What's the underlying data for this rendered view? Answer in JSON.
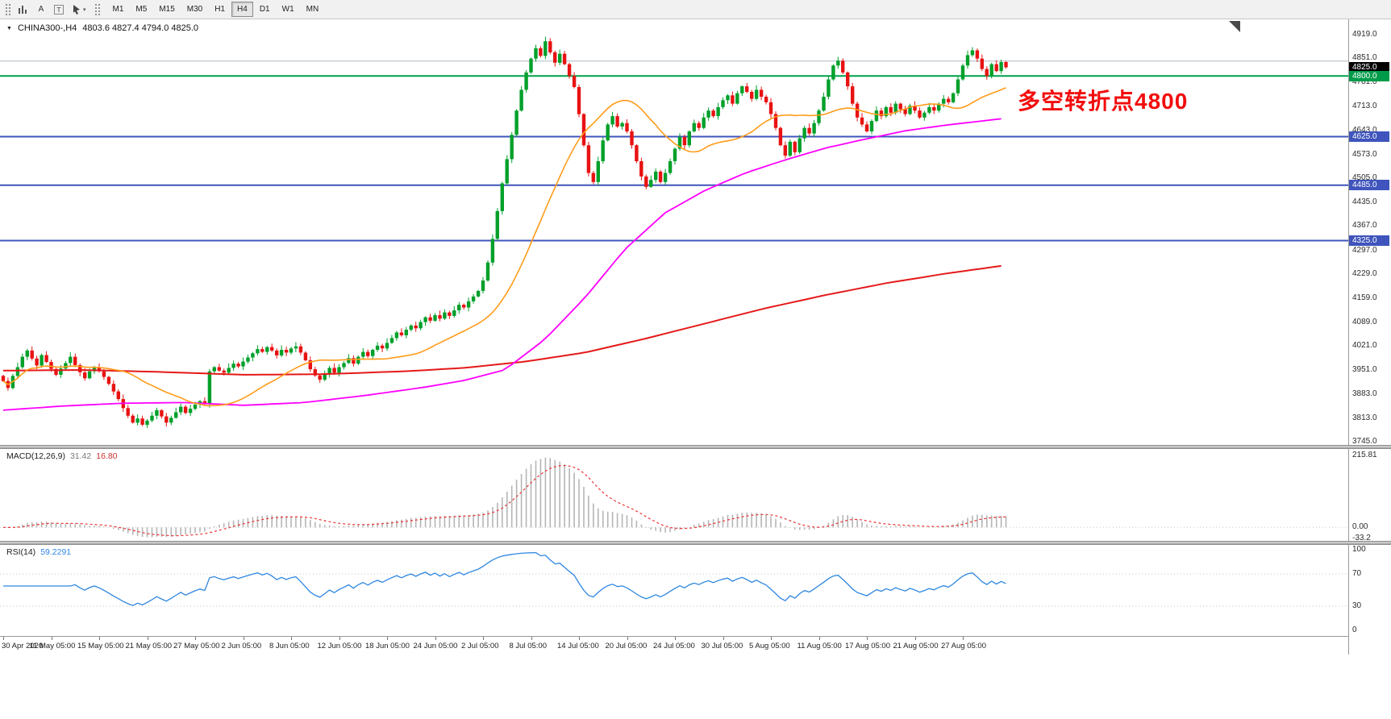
{
  "toolbar": {
    "tools": [
      {
        "id": "chart-type",
        "label": ""
      },
      {
        "id": "text-label",
        "label": "A"
      },
      {
        "id": "text-box",
        "label": "T"
      },
      {
        "id": "cursor",
        "label": ""
      }
    ],
    "timeframes": [
      {
        "label": "M1",
        "active": false
      },
      {
        "label": "M5",
        "active": false
      },
      {
        "label": "M15",
        "active": false
      },
      {
        "label": "M30",
        "active": false
      },
      {
        "label": "H1",
        "active": false
      },
      {
        "label": "H4",
        "active": true
      },
      {
        "label": "D1",
        "active": false
      },
      {
        "label": "W1",
        "active": false
      },
      {
        "label": "MN",
        "active": false
      }
    ]
  },
  "main_chart": {
    "title": "CHINA300-,H4",
    "ohlc": "4803.6 4827.4 4794.0 4825.0",
    "annotation": "多空转折点4800",
    "price_axis": {
      "top_value": 4919,
      "bottom_value": 3745,
      "labels": [
        "4919.0",
        "4851.0",
        "4781.0",
        "4713.0",
        "4643.0",
        "4573.0",
        "4505.0",
        "4435.0",
        "4367.0",
        "4297.0",
        "4229.0",
        "4159.0",
        "4089.0",
        "4021.0",
        "3951.0",
        "3883.0",
        "3813.0",
        "3745.0"
      ]
    },
    "tags": [
      {
        "value": "4825.0",
        "price": 4825,
        "bg": "#000000"
      },
      {
        "value": "4800.0",
        "price": 4800,
        "bg": "#009b4a"
      },
      {
        "value": "4625.0",
        "price": 4625,
        "bg": "#3f54bc"
      },
      {
        "value": "4485.0",
        "price": 4485,
        "bg": "#3f54bc"
      },
      {
        "value": "4325.0",
        "price": 4325,
        "bg": "#3f54bc"
      }
    ],
    "levels": [
      {
        "price": 4843,
        "color": "#b0b7c3",
        "width": 1
      },
      {
        "price": 4800,
        "color": "#00a24b",
        "width": 2
      },
      {
        "price": 4625,
        "color": "#3f54bc",
        "width": 2
      },
      {
        "price": 4485,
        "color": "#3f54bc",
        "width": 2
      },
      {
        "price": 4325,
        "color": "#3f54bc",
        "width": 2
      }
    ]
  },
  "macd_panel": {
    "label": "MACD(12,26,9)",
    "value_main": "31.42",
    "value_signal": "16.80",
    "axis": [
      "215.81",
      "0.00",
      "-33.2"
    ],
    "max": 215.81,
    "min": -33.2
  },
  "rsi_panel": {
    "label": "RSI(14)",
    "value": "59.2291",
    "axis": [
      "100",
      "70",
      "30",
      "0"
    ],
    "grid": [
      70,
      30
    ]
  },
  "time_axis": {
    "labels": [
      "30 Apr 2020",
      "11 May 05:00",
      "15 May 05:00",
      "21 May 05:00",
      "27 May 05:00",
      "2 Jun 05:00",
      "8 Jun 05:00",
      "12 Jun 05:00",
      "18 Jun 05:00",
      "24 Jun 05:00",
      "2 Jul 05:00",
      "8 Jul 05:00",
      "14 Jul 05:00",
      "20 Jul 05:00",
      "24 Jul 05:00",
      "30 Jul 05:00",
      "5 Aug 05:00",
      "11 Aug 05:00",
      "17 Aug 05:00",
      "21 Aug 05:00",
      "27 Aug 05:00"
    ]
  },
  "chart_data": {
    "type": "candlestick",
    "symbol": "CHINA300-",
    "timeframe": "H4",
    "last_quote": {
      "open": 4803.6,
      "high": 4827.4,
      "low": 4794.0,
      "close": 4825.0
    },
    "price_range": [
      3745,
      4919
    ],
    "first_open": 3935,
    "closes": [
      3920,
      3900,
      3935,
      3960,
      3990,
      4008,
      3985,
      3965,
      3995,
      3975,
      3955,
      3938,
      3956,
      3972,
      3990,
      3966,
      3945,
      3928,
      3948,
      3960,
      3948,
      3932,
      3912,
      3890,
      3868,
      3842,
      3820,
      3800,
      3812,
      3794,
      3806,
      3820,
      3836,
      3818,
      3800,
      3814,
      3830,
      3846,
      3828,
      3840,
      3852,
      3862,
      3854,
      3948,
      3960,
      3950,
      3944,
      3958,
      3970,
      3962,
      3976,
      3988,
      4000,
      4012,
      4004,
      4018,
      4008,
      3994,
      4010,
      4002,
      4014,
      4020,
      4002,
      3980,
      3954,
      3936,
      3924,
      3940,
      3958,
      3944,
      3960,
      3972,
      3986,
      3970,
      3990,
      4004,
      3992,
      4010,
      4022,
      4014,
      4030,
      4044,
      4060,
      4052,
      4068,
      4080,
      4072,
      4090,
      4104,
      4094,
      4110,
      4100,
      4118,
      4108,
      4124,
      4140,
      4132,
      4150,
      4164,
      4180,
      4210,
      4262,
      4330,
      4410,
      4490,
      4560,
      4630,
      4700,
      4760,
      4810,
      4850,
      4880,
      4858,
      4900,
      4868,
      4838,
      4864,
      4834,
      4800,
      4768,
      4690,
      4600,
      4520,
      4494,
      4554,
      4614,
      4660,
      4684,
      4654,
      4664,
      4640,
      4600,
      4554,
      4510,
      4480,
      4500,
      4524,
      4494,
      4520,
      4554,
      4590,
      4624,
      4600,
      4640,
      4664,
      4650,
      4680,
      4700,
      4684,
      4710,
      4730,
      4744,
      4720,
      4750,
      4770,
      4754,
      4734,
      4760,
      4740,
      4724,
      4690,
      4650,
      4600,
      4570,
      4610,
      4580,
      4620,
      4650,
      4634,
      4664,
      4700,
      4740,
      4790,
      4830,
      4844,
      4810,
      4770,
      4720,
      4680,
      4660,
      4640,
      4670,
      4700,
      4684,
      4710,
      4694,
      4720,
      4704,
      4690,
      4714,
      4700,
      4680,
      4694,
      4710,
      4700,
      4720,
      4734,
      4724,
      4750,
      4790,
      4830,
      4860,
      4874,
      4850,
      4820,
      4800,
      4834,
      4814,
      4840,
      4825
    ],
    "ma_fast_period": 24,
    "ma_mid_waypoints": [
      [
        0,
        3836
      ],
      [
        0.06,
        3848
      ],
      [
        0.12,
        3856
      ],
      [
        0.18,
        3858
      ],
      [
        0.24,
        3850
      ],
      [
        0.3,
        3858
      ],
      [
        0.36,
        3878
      ],
      [
        0.42,
        3902
      ],
      [
        0.46,
        3922
      ],
      [
        0.5,
        3952
      ],
      [
        0.54,
        4040
      ],
      [
        0.58,
        4160
      ],
      [
        0.62,
        4300
      ],
      [
        0.66,
        4405
      ],
      [
        0.7,
        4470
      ],
      [
        0.74,
        4520
      ],
      [
        0.78,
        4558
      ],
      [
        0.82,
        4592
      ],
      [
        0.86,
        4618
      ],
      [
        0.9,
        4642
      ],
      [
        0.94,
        4658
      ],
      [
        1,
        4678
      ]
    ],
    "ma_slow_waypoints": [
      [
        0,
        3950
      ],
      [
        0.08,
        3952
      ],
      [
        0.16,
        3946
      ],
      [
        0.24,
        3938
      ],
      [
        0.32,
        3940
      ],
      [
        0.4,
        3948
      ],
      [
        0.46,
        3958
      ],
      [
        0.52,
        3976
      ],
      [
        0.58,
        4002
      ],
      [
        0.64,
        4042
      ],
      [
        0.7,
        4086
      ],
      [
        0.76,
        4130
      ],
      [
        0.82,
        4168
      ],
      [
        0.88,
        4202
      ],
      [
        0.94,
        4230
      ],
      [
        1,
        4254
      ]
    ],
    "macd": {
      "fast": 12,
      "slow": 26,
      "signal": 9,
      "current": 31.42,
      "current_signal": 16.8
    },
    "rsi": {
      "period": 14,
      "current": 59.2291
    },
    "colors": {
      "up": "#00a02a",
      "down": "#e81212",
      "ma_fast": "#ff9c1a",
      "ma_mid": "#ff00ff",
      "ma_slow": "#e51919",
      "macd_hist": "#b5b5b5",
      "macd_signal": "#e93434",
      "rsi": "#2e86e0",
      "annotation": "#f20d0d",
      "level_gray": "#b0b7c3"
    }
  }
}
